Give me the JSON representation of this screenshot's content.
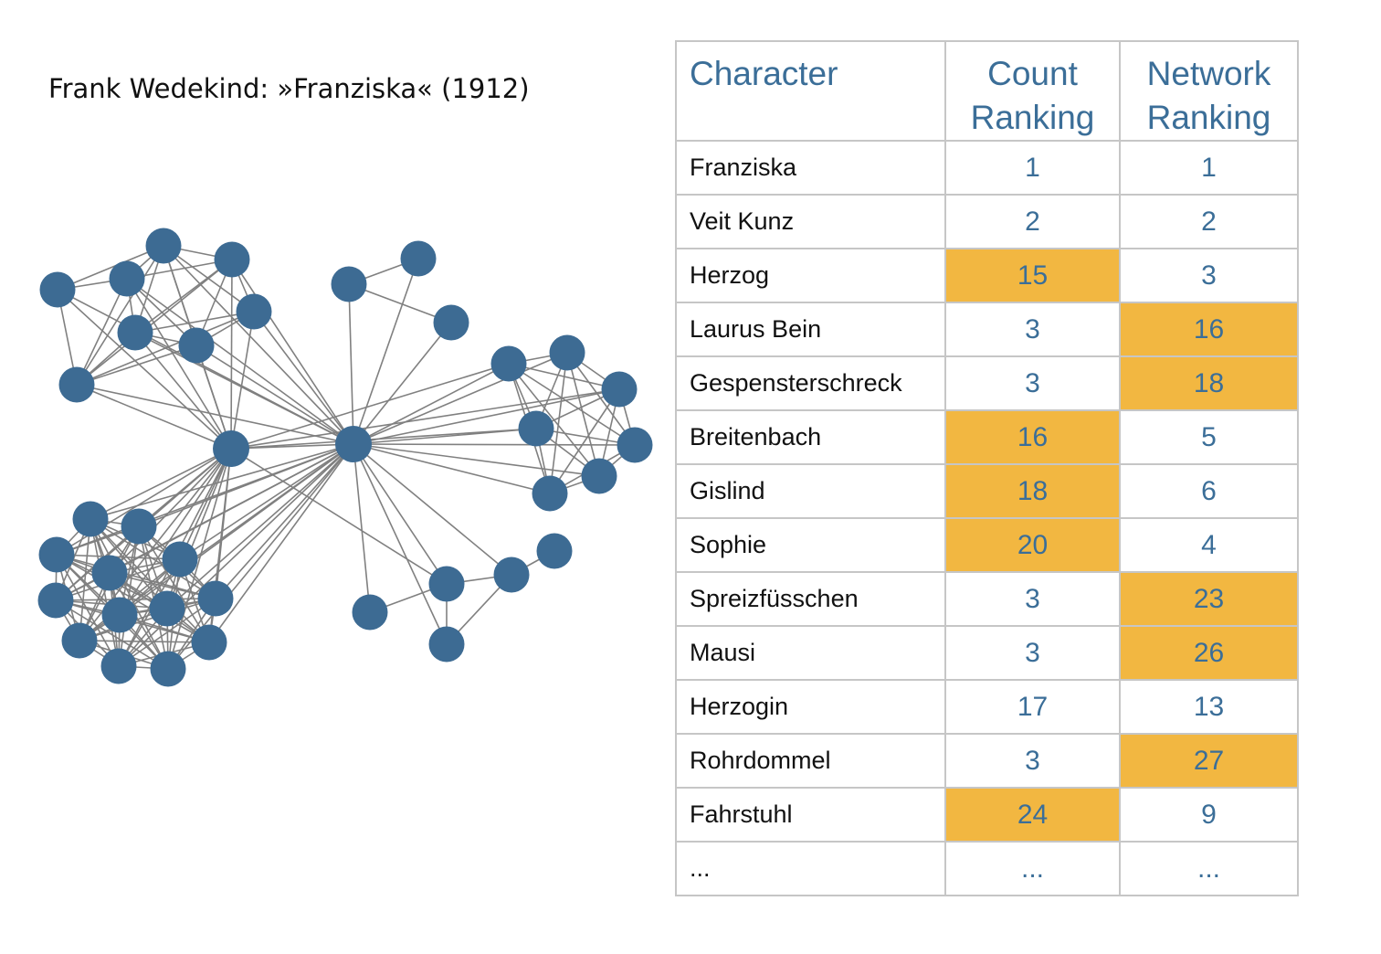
{
  "title": "Frank Wedekind: »Franziska« (1912)",
  "colors": {
    "node": "#3d6b93",
    "edge": "#808080",
    "highlight": "#f2b741",
    "header_text": "#3b6e98"
  },
  "table": {
    "headers": {
      "character": "Character",
      "count_line1": "Count",
      "count_line2": "Ranking",
      "network_line1": "Network",
      "network_line2": "Ranking"
    },
    "rows": [
      {
        "character": "Franziska",
        "count": "1",
        "network": "1",
        "count_hl": false,
        "network_hl": false
      },
      {
        "character": "Veit Kunz",
        "count": "2",
        "network": "2",
        "count_hl": false,
        "network_hl": false
      },
      {
        "character": "Herzog",
        "count": "15",
        "network": "3",
        "count_hl": true,
        "network_hl": false
      },
      {
        "character": "Laurus Bein",
        "count": "3",
        "network": "16",
        "count_hl": false,
        "network_hl": true
      },
      {
        "character": "Gespensterschreck",
        "count": "3",
        "network": "18",
        "count_hl": false,
        "network_hl": true
      },
      {
        "character": "Breitenbach",
        "count": "16",
        "network": "5",
        "count_hl": true,
        "network_hl": false
      },
      {
        "character": "Gislind",
        "count": "18",
        "network": "6",
        "count_hl": true,
        "network_hl": false
      },
      {
        "character": "Sophie",
        "count": "20",
        "network": "4",
        "count_hl": true,
        "network_hl": false
      },
      {
        "character": "Spreizfüsschen",
        "count": "3",
        "network": "23",
        "count_hl": false,
        "network_hl": true
      },
      {
        "character": "Mausi",
        "count": "3",
        "network": "26",
        "count_hl": false,
        "network_hl": true
      },
      {
        "character": "Herzogin",
        "count": "17",
        "network": "13",
        "count_hl": false,
        "network_hl": false
      },
      {
        "character": "Rohrdommel",
        "count": "3",
        "network": "27",
        "count_hl": false,
        "network_hl": true
      },
      {
        "character": "Fahrstuhl",
        "count": "24",
        "network": "9",
        "count_hl": true,
        "network_hl": false
      },
      {
        "character": "...",
        "count": "...",
        "network": "...",
        "count_hl": false,
        "network_hl": false
      }
    ]
  }
}
